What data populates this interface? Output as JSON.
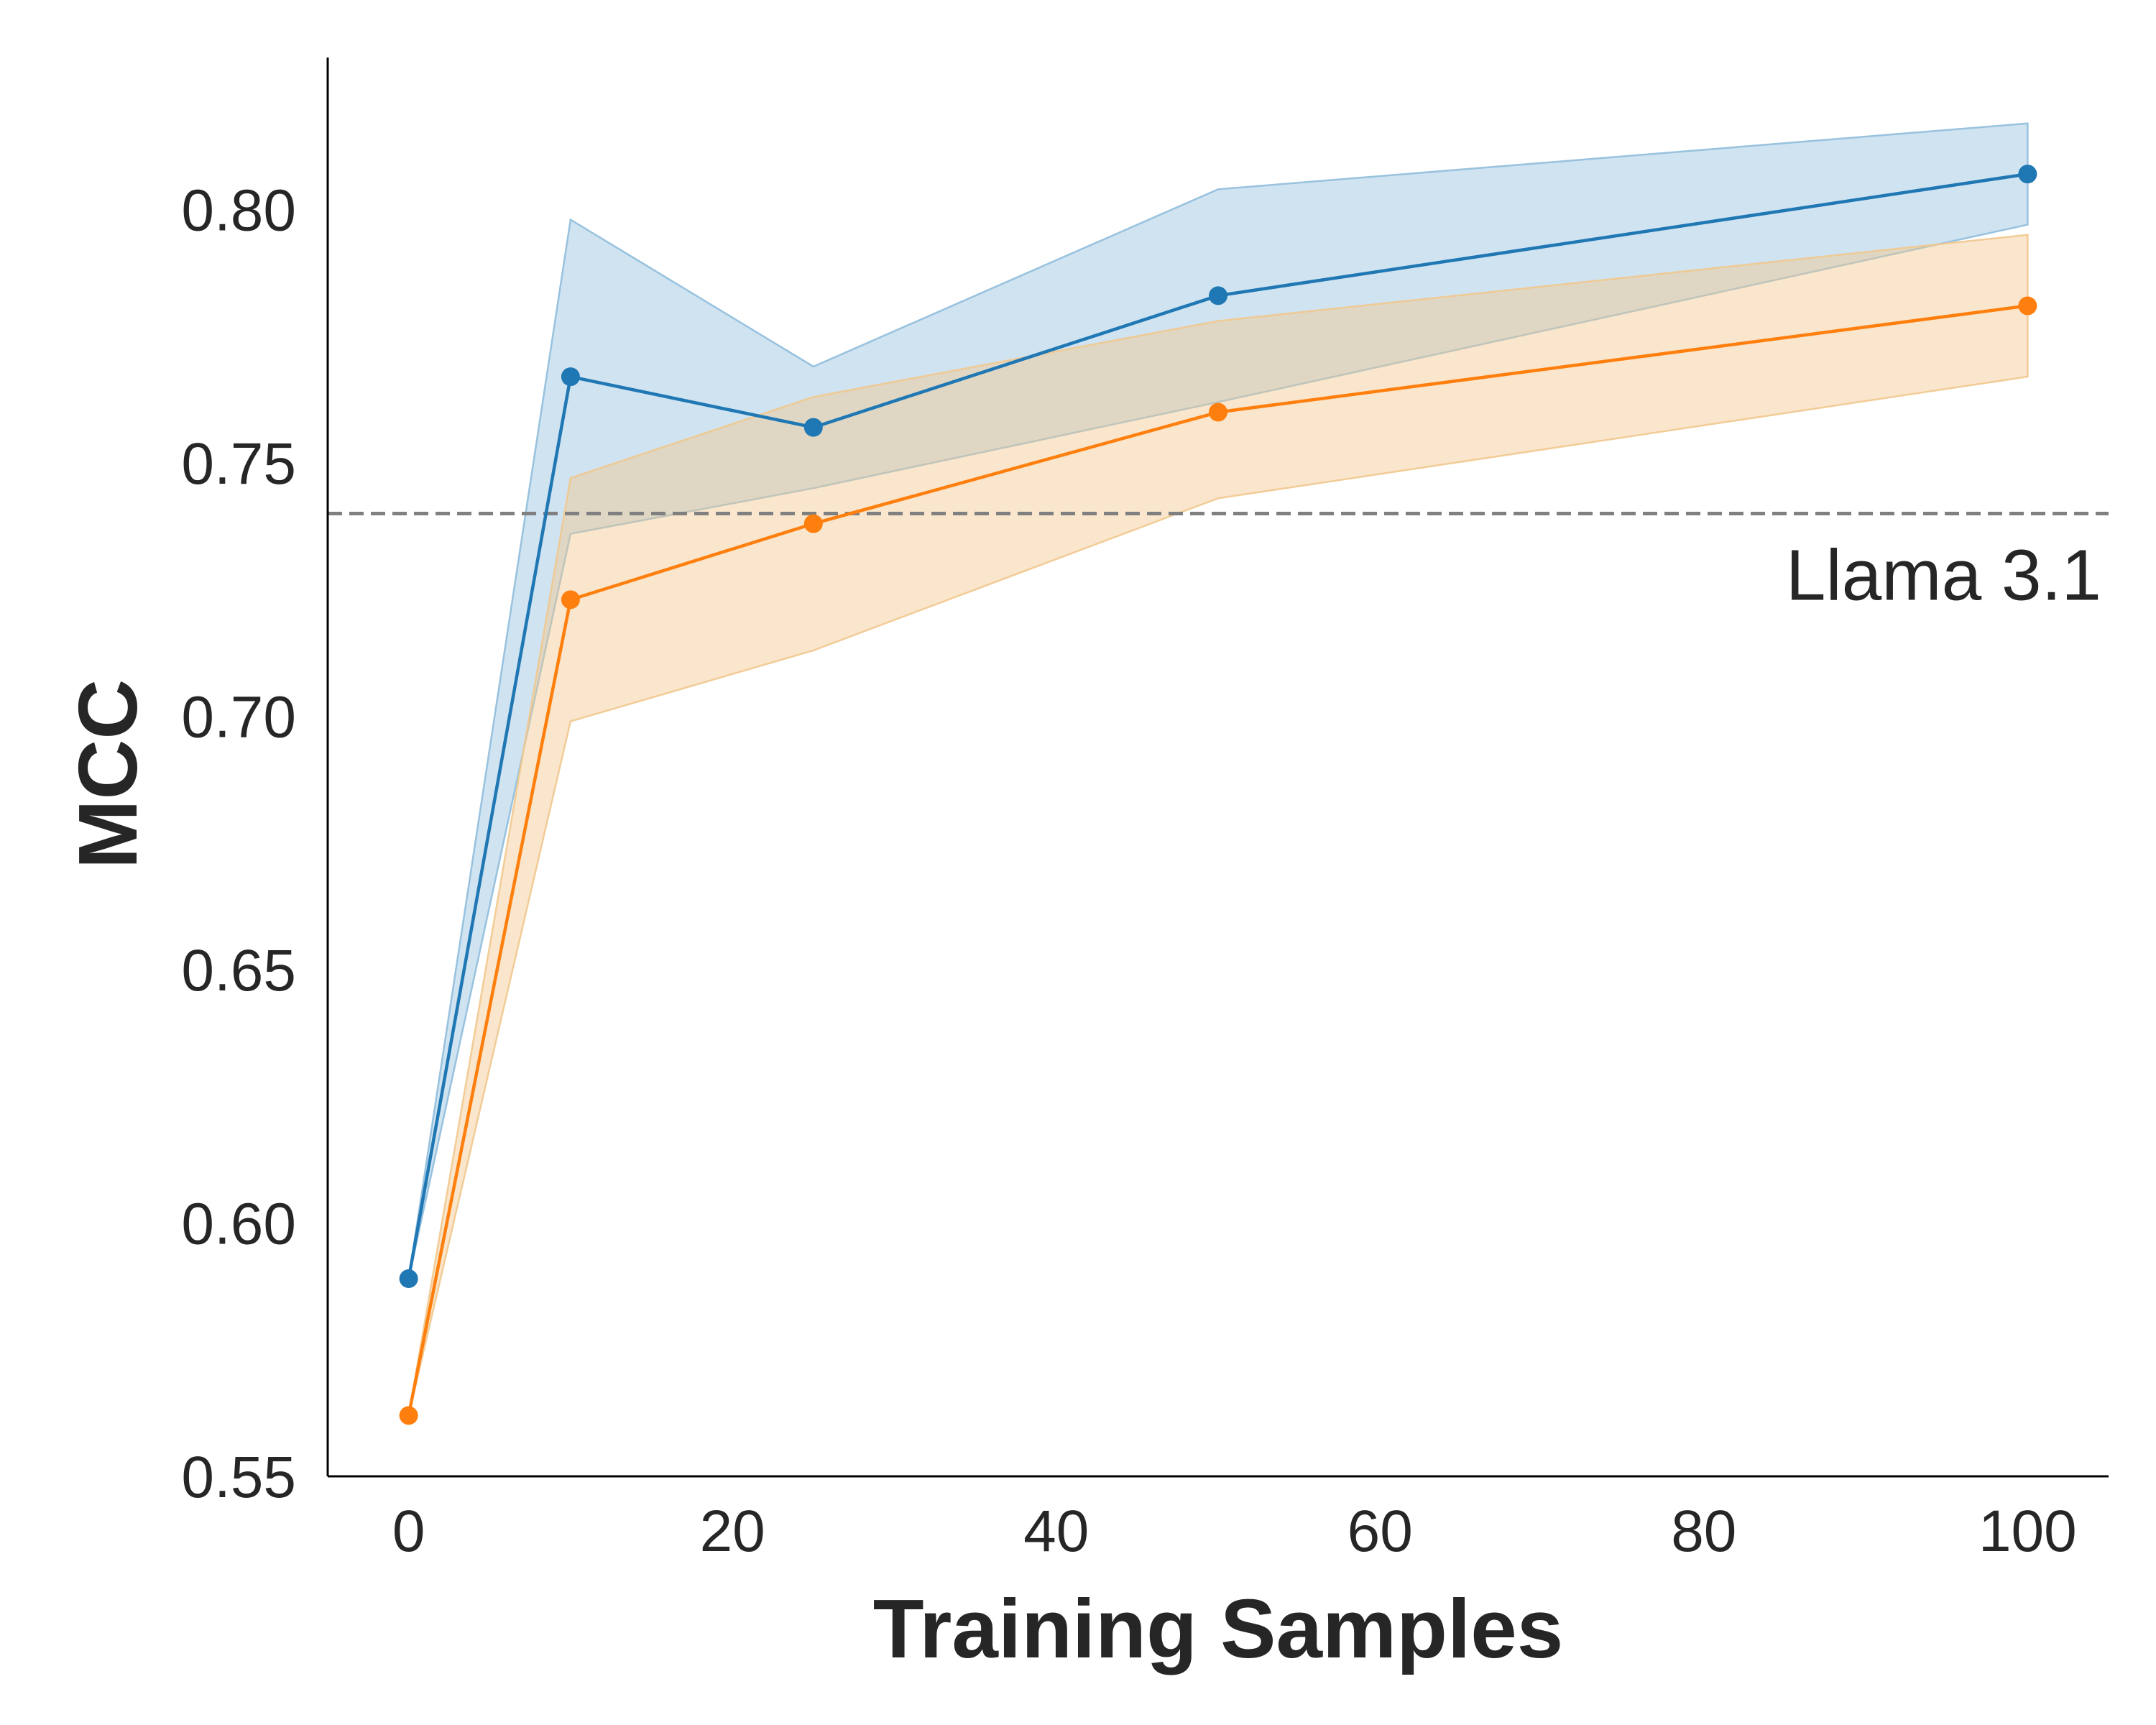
{
  "chart_data": {
    "type": "line",
    "title": "",
    "xlabel": "Training Samples",
    "ylabel": "MCC",
    "xlim": [
      -5,
      105
    ],
    "ylim": [
      0.55,
      0.83
    ],
    "x_ticks": [
      0,
      20,
      40,
      60,
      80,
      100
    ],
    "x_tick_labels": [
      "0",
      "20",
      "40",
      "60",
      "80",
      "100"
    ],
    "y_ticks": [
      0.55,
      0.6,
      0.65,
      0.7,
      0.75,
      0.8
    ],
    "y_tick_labels": [
      "0.55",
      "0.60",
      "0.65",
      "0.70",
      "0.75",
      "0.80"
    ],
    "grid": false,
    "legend": "none",
    "x": [
      0,
      10,
      25,
      50,
      100
    ],
    "series": [
      {
        "name": "blue",
        "color": "#1f77b4",
        "fill_color": "#8fbcdc",
        "values": [
          0.589,
          0.767,
          0.757,
          0.783,
          0.807
        ],
        "band_upper": [
          0.589,
          0.798,
          0.769,
          0.804,
          0.817
        ],
        "band_lower": [
          0.589,
          0.736,
          0.745,
          0.762,
          0.797
        ]
      },
      {
        "name": "orange",
        "color": "#ff7f0e",
        "fill_color": "#f1c88e",
        "values": [
          0.562,
          0.723,
          0.738,
          0.76,
          0.781
        ],
        "band_upper": [
          0.562,
          0.747,
          0.763,
          0.778,
          0.795
        ],
        "band_lower": [
          0.562,
          0.699,
          0.713,
          0.743,
          0.767
        ]
      }
    ],
    "reference_line": {
      "label": "Llama 3.1",
      "value": 0.74,
      "color": "#808080",
      "style": "dashed"
    }
  }
}
